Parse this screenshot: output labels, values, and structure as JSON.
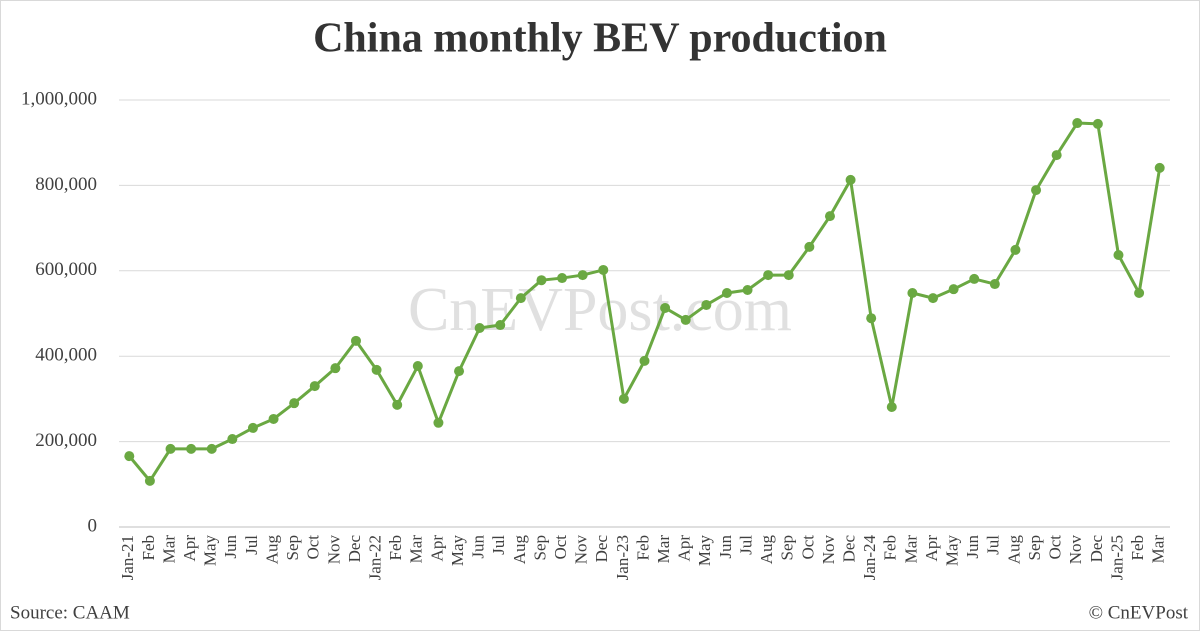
{
  "chart_data": {
    "type": "line",
    "title": "China monthly BEV production",
    "watermark": "CnEVPost.com",
    "source": "Source: CAAM",
    "credit": "© CnEVPost",
    "categories": [
      "Jan-21",
      "Feb",
      "Mar",
      "Apr",
      "May",
      "Jun",
      "Jul",
      "Aug",
      "Sep",
      "Oct",
      "Nov",
      "Dec",
      "Jan-22",
      "Feb",
      "Mar",
      "Apr",
      "May",
      "Jun",
      "Jul",
      "Aug",
      "Sep",
      "Oct",
      "Nov",
      "Dec",
      "Jan-23",
      "Feb",
      "Mar",
      "Apr",
      "May",
      "Jun",
      "Jul",
      "Aug",
      "Sep",
      "Oct",
      "Nov",
      "Dec",
      "Jan-24",
      "Feb",
      "Mar",
      "Apr",
      "May",
      "Jun",
      "Jul",
      "Aug",
      "Sep",
      "Oct",
      "Nov",
      "Dec",
      "Jan-25",
      "Feb",
      "Mar"
    ],
    "values": [
      166000,
      108000,
      183000,
      183000,
      183000,
      206000,
      232000,
      253000,
      290000,
      330000,
      372000,
      436000,
      368000,
      286000,
      377000,
      244000,
      365000,
      466000,
      473000,
      536000,
      578000,
      583000,
      590000,
      602000,
      300000,
      389000,
      513000,
      485000,
      520000,
      548000,
      555000,
      590000,
      590000,
      656000,
      728000,
      813000,
      489000,
      281000,
      548000,
      536000,
      557000,
      581000,
      569000,
      649000,
      789000,
      871000,
      946000,
      944000,
      637000,
      548000,
      841000
    ],
    "color": "#6aa842",
    "ylim": [
      0,
      1000000
    ],
    "yticks": [
      0,
      {
        "value": 200000,
        "label": "200,000"
      },
      {
        "value": 400000,
        "label": "400,000"
      },
      {
        "value": 600000,
        "label": "600,000"
      },
      {
        "value": 800000,
        "label": "800,000"
      },
      {
        "value": 1000000,
        "label": "1,000,000"
      }
    ],
    "grid": true
  }
}
